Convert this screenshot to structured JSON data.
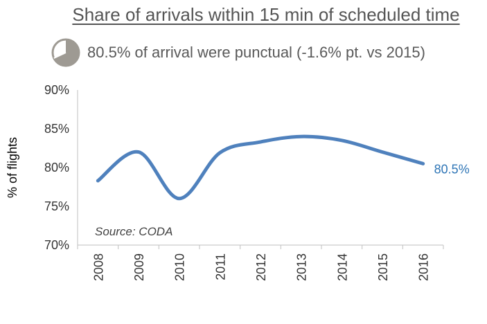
{
  "title": "Share of arrivals within 15 min of scheduled time",
  "subtitle": "80.5% of arrival were punctual (-1.6% pt. vs 2015)",
  "icon": "pie-chart-icon",
  "colors": {
    "line": "#4F81BD",
    "label": "#2E75B6",
    "text": "#595959",
    "icon": "#9E9A93"
  },
  "chart_data": {
    "type": "line",
    "title": "Share of arrivals within 15 min of scheduled time",
    "xlabel": "",
    "ylabel": "% of flights",
    "categories": [
      "2008",
      "2009",
      "2010",
      "2011",
      "2012",
      "2013",
      "2014",
      "2015",
      "2016"
    ],
    "series": [
      {
        "values": [
          78.3,
          82.0,
          76.0,
          81.9,
          83.3,
          84.0,
          83.5,
          82.0,
          80.5
        ]
      }
    ],
    "ylim": [
      70,
      90
    ],
    "yticks": [
      "70%",
      "75%",
      "80%",
      "85%",
      "90%"
    ],
    "grid": false,
    "annotation": "Source: CODA",
    "end_label": "80.5%"
  }
}
